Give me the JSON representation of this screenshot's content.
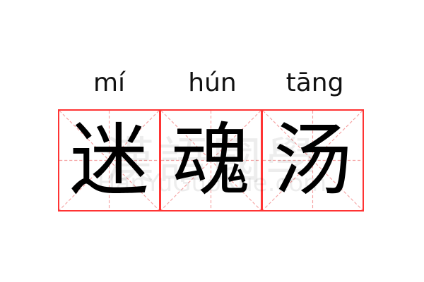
{
  "syllables": [
    {
      "pinyin": "mí",
      "character": "迷"
    },
    {
      "pinyin": "hún",
      "character": "魂"
    },
    {
      "pinyin": "tāng",
      "character": "汤"
    }
  ],
  "watermark": {
    "chinese": "漢語國學",
    "latin": "HanYuGuoXue.com"
  },
  "colors": {
    "grid_border": "#ff3333",
    "guide_lines": "#f5a0a0",
    "text": "#000000"
  }
}
